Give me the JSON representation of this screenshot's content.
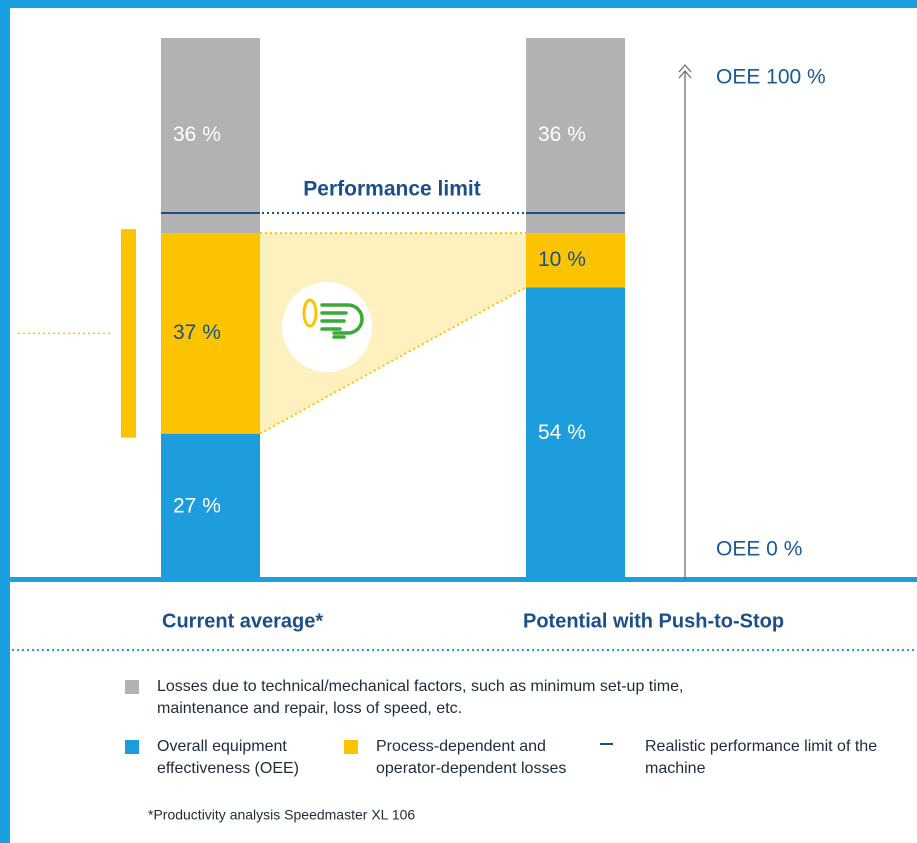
{
  "chart_data": {
    "type": "stacked-bar",
    "categories": [
      "Current average*",
      "Potential with Push-to-Stop"
    ],
    "ylim": [
      0,
      100
    ],
    "series": [
      {
        "name": "Overall equipment effectiveness (OEE)",
        "color": "#1d9ddc",
        "values": [
          27,
          54
        ],
        "value_labels": [
          "27 %",
          "54 %"
        ],
        "label_color": "#ffffff"
      },
      {
        "name": "Process-dependent and operator-dependent losses",
        "color": "#fcc400",
        "values": [
          37,
          10
        ],
        "value_labels": [
          "37 %",
          "10 %"
        ],
        "label_color": "#1a4f8a"
      },
      {
        "name": "Losses due to technical/mechanical factors, such as minimum set-up time, maintenance and repair, loss of speed, etc.",
        "color": "#b2b2b2",
        "values": [
          36,
          36
        ],
        "value_labels": [
          "36 %",
          "36 %"
        ],
        "label_color": "#ffffff"
      }
    ],
    "limit_label": "Performance limit",
    "limit_legend": "Realistic performance limit of the machine",
    "axis_top_label": "OEE 100 %",
    "axis_bottom_label": "OEE 0 %",
    "footnote": "*Productivity analysis Speedmaster XL 106"
  }
}
